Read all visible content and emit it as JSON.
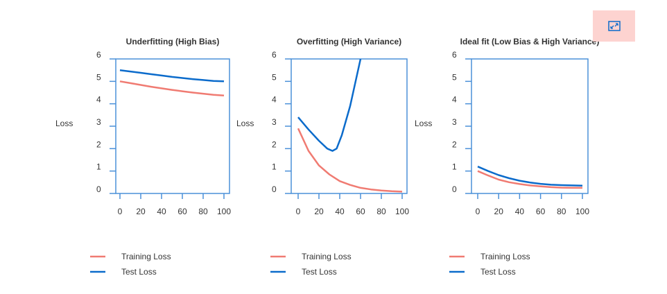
{
  "expand_button": {
    "icon": "expand-icon"
  },
  "colors": {
    "train": "#f07b72",
    "test": "#0b6bcb",
    "axis": "#4a90d9"
  },
  "chart_data": [
    {
      "type": "line",
      "title": "Underfitting (High Bias)",
      "ylabel": "Loss",
      "xlabel": "",
      "xlim": [
        0,
        100
      ],
      "ylim": [
        0,
        6
      ],
      "xticks": [
        "0",
        "20",
        "40",
        "60",
        "80",
        "100"
      ],
      "yticks": [
        "0",
        "1",
        "2",
        "3",
        "4",
        "5",
        "6"
      ],
      "x": [
        0,
        10,
        20,
        30,
        40,
        50,
        60,
        70,
        80,
        90,
        100
      ],
      "series": [
        {
          "name": "Training Loss",
          "values": [
            5.0,
            4.92,
            4.84,
            4.76,
            4.69,
            4.62,
            4.56,
            4.5,
            4.45,
            4.4,
            4.37
          ]
        },
        {
          "name": "Test Loss",
          "values": [
            5.5,
            5.44,
            5.38,
            5.32,
            5.26,
            5.2,
            5.15,
            5.1,
            5.06,
            5.02,
            5.0
          ]
        }
      ],
      "legend": "bottom"
    },
    {
      "type": "line",
      "title": "Overfitting (High Variance)",
      "ylabel": "Loss",
      "xlabel": "",
      "xlim": [
        0,
        100
      ],
      "ylim": [
        0,
        6
      ],
      "xticks": [
        "0",
        "20",
        "40",
        "60",
        "80",
        "100"
      ],
      "yticks": [
        "0",
        "1",
        "2",
        "3",
        "4",
        "5",
        "6"
      ],
      "x": [
        0,
        10,
        20,
        30,
        40,
        50,
        60,
        70,
        80,
        90,
        100
      ],
      "series": [
        {
          "name": "Training Loss",
          "values": [
            2.9,
            1.9,
            1.25,
            0.85,
            0.55,
            0.38,
            0.25,
            0.18,
            0.13,
            0.1,
            0.08
          ]
        },
        {
          "name": "Test Loss",
          "x": [
            0,
            10,
            20,
            28,
            33,
            37,
            42,
            50,
            60
          ],
          "values": [
            3.4,
            2.85,
            2.35,
            2.0,
            1.9,
            2.0,
            2.6,
            3.9,
            6.0
          ]
        }
      ],
      "legend": "bottom"
    },
    {
      "type": "line",
      "title": "Ideal fit (Low Bias & High Variance)",
      "ylabel": "Loss",
      "xlabel": "",
      "xlim": [
        0,
        100
      ],
      "ylim": [
        0,
        6
      ],
      "xticks": [
        "0",
        "20",
        "40",
        "60",
        "80",
        "100"
      ],
      "yticks": [
        "0",
        "1",
        "2",
        "3",
        "4",
        "5",
        "6"
      ],
      "x": [
        0,
        10,
        20,
        30,
        40,
        50,
        60,
        70,
        80,
        90,
        100
      ],
      "series": [
        {
          "name": "Training Loss",
          "values": [
            1.0,
            0.8,
            0.62,
            0.5,
            0.42,
            0.36,
            0.32,
            0.28,
            0.26,
            0.25,
            0.25
          ]
        },
        {
          "name": "Test Loss",
          "values": [
            1.2,
            1.0,
            0.82,
            0.68,
            0.57,
            0.49,
            0.43,
            0.39,
            0.37,
            0.36,
            0.35
          ]
        }
      ],
      "legend": "bottom"
    }
  ]
}
